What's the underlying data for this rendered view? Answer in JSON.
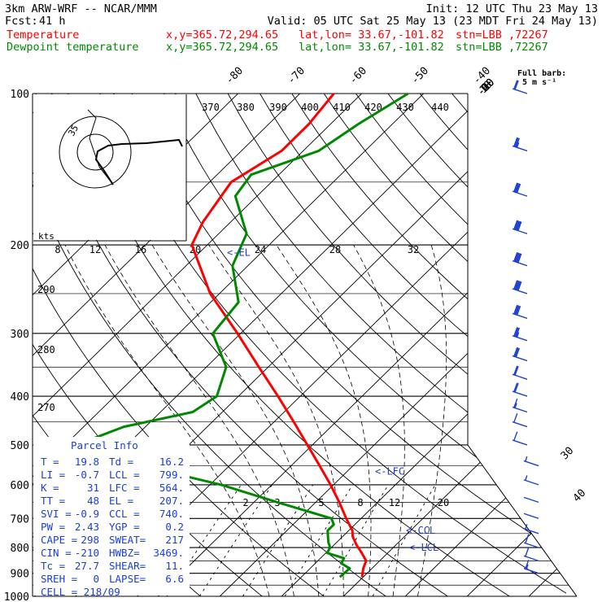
{
  "header": {
    "model": "3km ARW-WRF -- NCAR/MMM",
    "init": "Init: 12 UTC Thu 23 May 13",
    "fcst_label": "Fcst:",
    "fcst_hours": "41 h",
    "valid": "Valid: 05 UTC Sat 25 May 13 (23 MDT Fri 24 May 13)",
    "legend": [
      {
        "name": "Temperature",
        "coords": "x,y=365.72,294.65",
        "latlon": "lat,lon= 33.67,-101.82",
        "stn": "stn=LBB ,72267",
        "color": "#ff0000"
      },
      {
        "name": "Dewpoint temperature",
        "coords": "x,y=365.72,294.65",
        "latlon": "lat,lon= 33.67,-101.82",
        "stn": "stn=LBB ,72267",
        "color": "#008800"
      }
    ],
    "barb_note": [
      "Full barb:",
      "5 m s⁻¹"
    ]
  },
  "parcel_info": {
    "title": "Parcel Info",
    "rows": [
      [
        "T  =",
        "19.8",
        "Td =",
        "16.2"
      ],
      [
        "LI =",
        "-0.7",
        "LCL =",
        "799."
      ],
      [
        "K  =",
        "31",
        "LFC =",
        "564."
      ],
      [
        "TT =",
        "48",
        "EL  =",
        "207."
      ],
      [
        "SVI =",
        "-0.9",
        "CCL =",
        "740."
      ],
      [
        "PW =",
        "2.43",
        "YGP =",
        "0.2"
      ],
      [
        "CAPE =",
        "298",
        "SWEAT=",
        "217"
      ],
      [
        "CIN =",
        "-210",
        "HWBZ=",
        "3469."
      ],
      [
        "Tc =",
        "27.7",
        "SHEAR=",
        "11."
      ],
      [
        "SREH =",
        "0",
        "LAPSE=",
        "6.6"
      ]
    ],
    "cell": "CELL = 218/09"
  },
  "level_markers": [
    {
      "text": "<-EL",
      "p": 207
    },
    {
      "text": "<-LFC",
      "p": 564
    },
    {
      "text": "<-CCL",
      "p": 740
    },
    {
      "text": "<-LCL",
      "p": 799
    }
  ],
  "hodograph": {
    "speed_unit": "kts",
    "ring_labels": [
      "8",
      "12",
      "16",
      "20",
      "24",
      "28",
      "32"
    ],
    "ring_label_35": "35",
    "theta_labels": [
      "370",
      "380",
      "390",
      "400",
      "410",
      "420",
      "430",
      "440"
    ],
    "wind_u": [
      2,
      -3,
      -4,
      -2,
      4,
      18,
      30,
      45
    ],
    "wind_v": [
      -14,
      -10,
      -5,
      4,
      16,
      18,
      20,
      23
    ]
  },
  "chart_data": {
    "type": "line",
    "title": "",
    "xlabel": "",
    "ylabel": "",
    "yscale": "log",
    "pressure_range": [
      1000,
      100
    ],
    "temperature_range": [
      -40,
      40
    ],
    "pressure_ticks": [
      100,
      200,
      300,
      400,
      500,
      600,
      700,
      800,
      900,
      1000
    ],
    "isotherm_labels": [
      -80,
      -70,
      -60,
      -50,
      -40,
      -30,
      -20,
      -10,
      0,
      10,
      30,
      40
    ],
    "dry_adiabat_labels": [
      290,
      280,
      270
    ],
    "mixing_ratio_labels": [
      2,
      3,
      5,
      8,
      12,
      20
    ],
    "series": [
      {
        "name": "Temperature",
        "color": "#ff0000",
        "pressure": [
          915,
          880,
          850,
          820,
          790,
          760,
          740,
          700,
          650,
          600,
          550,
          500,
          450,
          400,
          350,
          300,
          250,
          200,
          180,
          150,
          130,
          115,
          100
        ],
        "values": [
          19.8,
          18.6,
          17.8,
          15.8,
          13.6,
          11.6,
          10.6,
          7.6,
          3.8,
          -0.5,
          -5.4,
          -10.8,
          -16.8,
          -23.6,
          -31.5,
          -40.5,
          -51.5,
          -62.5,
          -64.5,
          -66.5,
          -63.5,
          -63.5,
          -64.5
        ]
      },
      {
        "name": "Dewpoint temperature",
        "color": "#008800",
        "pressure": [
          915,
          880,
          860,
          840,
          820,
          800,
          780,
          760,
          740,
          720,
          700,
          650,
          600,
          550,
          500,
          460,
          430,
          400,
          350,
          300,
          260,
          220,
          190,
          160,
          145,
          130,
          115,
          100
        ],
        "values": [
          16.2,
          16.4,
          14.2,
          13.8,
          10.2,
          9.8,
          8.6,
          7.6,
          6.6,
          6.6,
          5.2,
          -6.2,
          -18.2,
          -34.2,
          -48.2,
          -43.5,
          -34.8,
          -33.5,
          -36.8,
          -44.5,
          -45.5,
          -52.5,
          -55.5,
          -63.5,
          -64.5,
          -57.5,
          -55.5,
          -52.5
        ]
      }
    ],
    "wind_barbs": {
      "unit": "m s-1",
      "pressure": [
        100,
        130,
        160,
        190,
        220,
        250,
        280,
        310,
        340,
        370,
        400,
        430,
        460,
        500,
        550,
        600,
        650,
        700,
        750,
        800,
        850,
        900
      ],
      "speed": [
        12,
        18,
        22,
        25,
        25,
        25,
        22,
        18,
        15,
        12,
        10,
        8,
        6,
        5,
        3,
        3,
        2,
        2,
        3,
        5,
        7,
        8
      ],
      "direction_deg": [
        250,
        250,
        245,
        245,
        240,
        240,
        240,
        240,
        235,
        230,
        230,
        220,
        210,
        200,
        190,
        180,
        170,
        190,
        210,
        200,
        190,
        180
      ]
    }
  }
}
